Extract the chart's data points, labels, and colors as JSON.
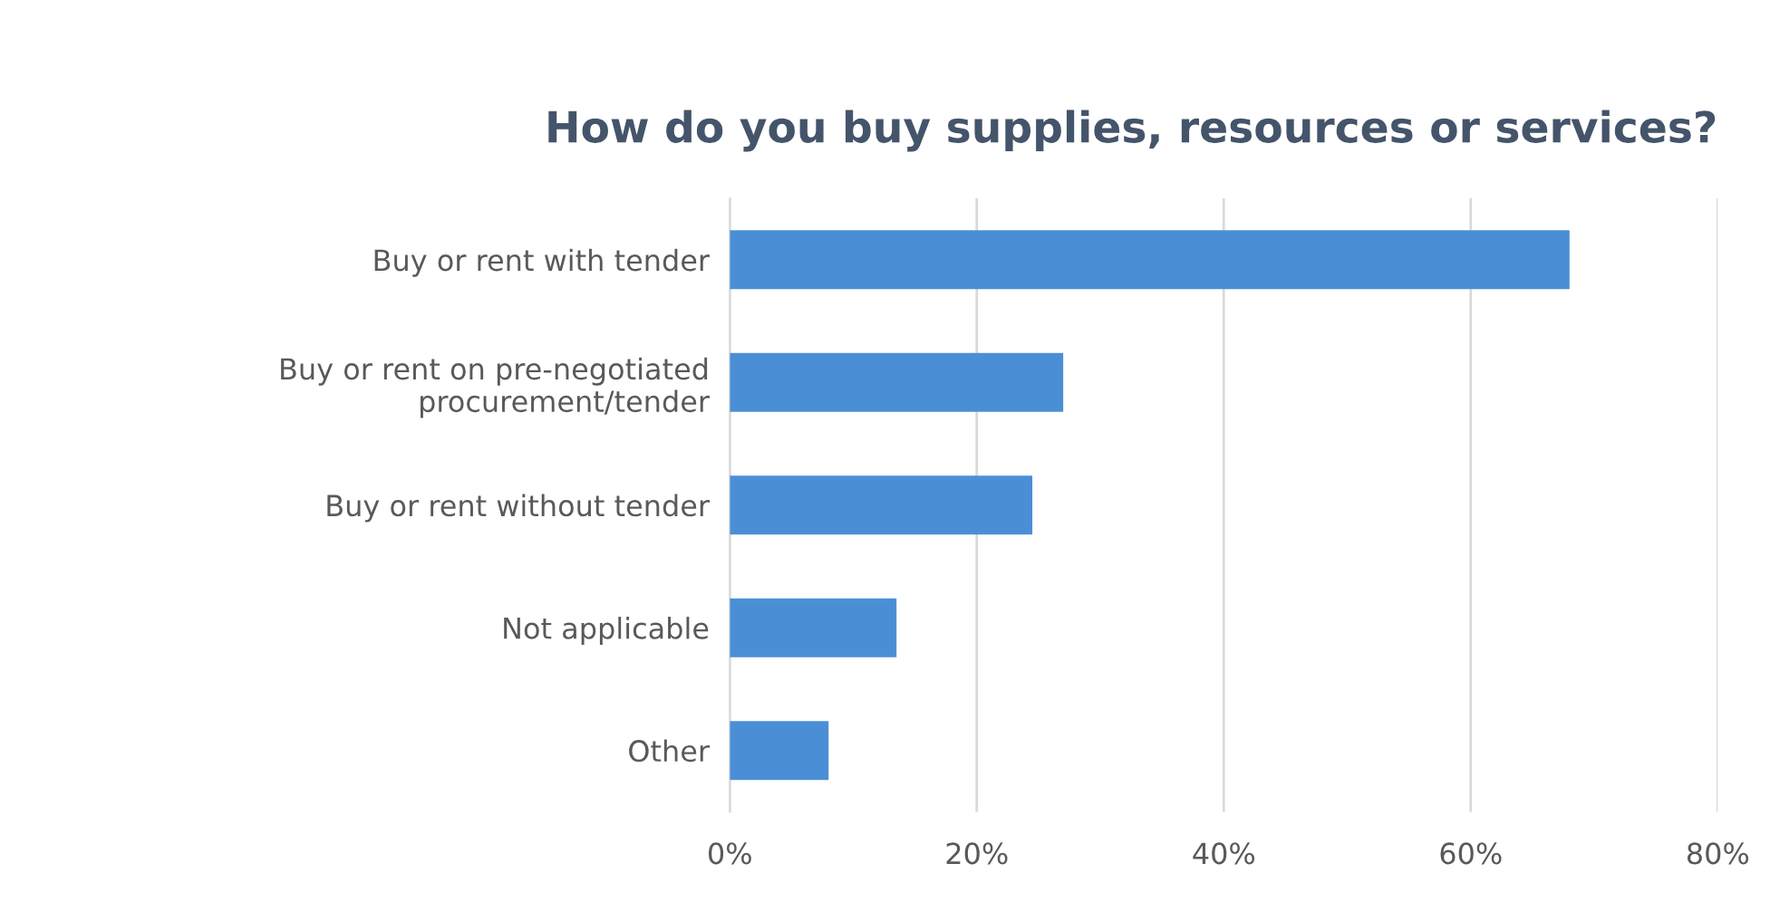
{
  "chart_data": {
    "type": "bar",
    "orientation": "horizontal",
    "title": "How do you buy supplies, resources or services?",
    "categories": [
      "Buy or rent with tender",
      "Buy or rent on pre-negotiated\nprocurement/tender",
      "Buy or rent without tender",
      "Not applicable",
      "Other"
    ],
    "values": [
      68,
      27,
      24.5,
      13.5,
      8
    ],
    "color": "#4a8fd6",
    "xlim": [
      0,
      80
    ],
    "xticks": [
      {
        "value": 0,
        "label": "0%"
      },
      {
        "value": 20,
        "label": "20%"
      },
      {
        "value": 40,
        "label": "40%"
      },
      {
        "value": 60,
        "label": "60%"
      },
      {
        "value": 80,
        "label": "80%"
      }
    ],
    "grid": "x"
  }
}
